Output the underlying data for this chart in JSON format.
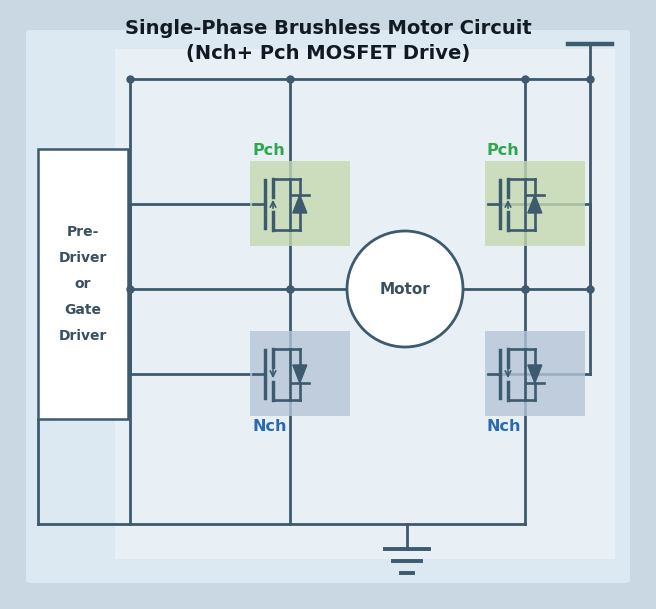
{
  "title_line1": "Single-Phase Brushless Motor Circuit",
  "title_line2": "(Nch+ Pch MOSFET Drive)",
  "bg_color": "#cad8e3",
  "circuit_bg": "#dce8f2",
  "circuit_inner_bg": "#e8eff5",
  "wire_color": "#3d5a6e",
  "wire_lw": 2.0,
  "pch_bg": "#c5d9b0",
  "nch_bg": "#b5c5d8",
  "pch_label_color": "#2ea84f",
  "nch_label_color": "#2a6ab5",
  "driver_box_color": "#ffffff",
  "driver_text": [
    "Pre-",
    "Driver",
    "or",
    "Gate",
    "Driver"
  ],
  "motor_label": "Motor"
}
